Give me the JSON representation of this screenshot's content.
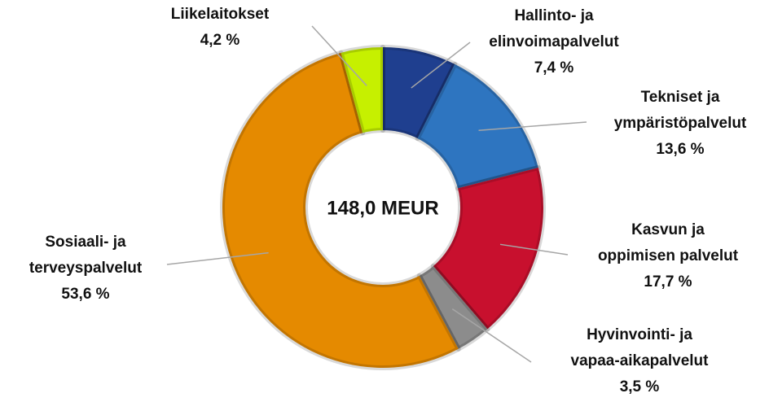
{
  "chart_data": {
    "type": "donut",
    "center_label": "148,0 MEUR",
    "categories": [
      "Hallinto- ja\nelinvoimapalvelut",
      "Tekniset ja\nympäristöpalvelut",
      "Kasvun ja\noppimisen palvelut",
      "Hyvinvointi- ja\nvapaa-aikapalvelut",
      "Sosiaali- ja\nterveyspalvelut",
      "Liikelaitokset"
    ],
    "values": [
      7.4,
      13.6,
      17.7,
      3.5,
      53.6,
      4.2
    ],
    "value_labels": [
      "7,4 %",
      "13,6 %",
      "17,7 %",
      "3,5 %",
      "53,6 %",
      "4,2 %"
    ],
    "colors": [
      "#1f3f8f",
      "#2e75c0",
      "#c8102e",
      "#8c8c8c",
      "#e58a00",
      "#c6f000"
    ]
  }
}
